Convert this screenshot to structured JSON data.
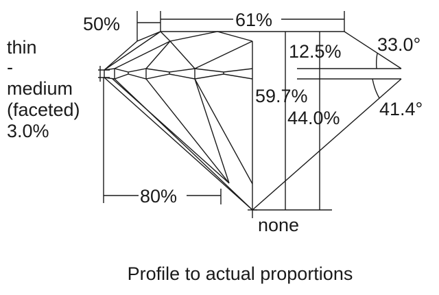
{
  "labels": {
    "crown_height_ratio": "50%",
    "table": "61%",
    "girdle_lines": [
      "thin",
      "-",
      "medium",
      "(faceted)",
      "3.0%"
    ],
    "crown_height": "12.5%",
    "total_depth": "59.7%",
    "pavilion_depth": "44.0%",
    "crown_angle": "33.0°",
    "pavilion_angle": "41.4°",
    "lower_half": "80%",
    "culet": "none"
  },
  "caption": "Profile to actual proportions"
}
